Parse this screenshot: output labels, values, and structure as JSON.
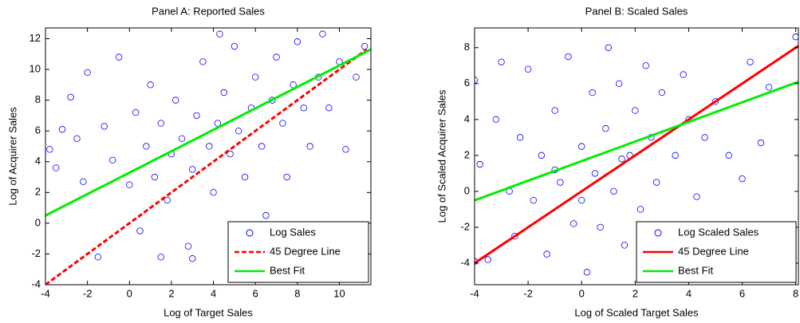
{
  "chart_data": [
    {
      "type": "scatter",
      "title": "Panel A: Reported Sales",
      "x_label": "Log of Target Sales",
      "y_label": "Log of Acquirer Sales",
      "xlim": [
        -4,
        11.5
      ],
      "ylim": [
        -4,
        12.7
      ],
      "xticks": [
        -4,
        -2,
        0,
        2,
        4,
        6,
        8,
        10
      ],
      "yticks": [
        -4,
        -2,
        0,
        2,
        4,
        6,
        8,
        10,
        12
      ],
      "legend": "lower right",
      "series": [
        {
          "name": "Log Sales",
          "style": "marker",
          "color": "#0000ff",
          "x": [
            -3.8,
            -3.5,
            -3.2,
            -2.8,
            -2.5,
            -2.2,
            -2,
            -1.5,
            -1.2,
            -0.8,
            -0.5,
            0,
            0.3,
            0.5,
            0.8,
            1,
            1.2,
            1.5,
            1.8,
            2,
            2.2,
            2.5,
            2.8,
            3,
            3.2,
            3.5,
            3.8,
            4,
            4.2,
            4.5,
            4.8,
            5,
            5.2,
            5.5,
            5.8,
            6,
            6.3,
            6.5,
            6.8,
            7,
            7.3,
            7.5,
            7.8,
            8,
            8.3,
            8.6,
            9,
            9.2,
            9.5,
            10,
            10.3,
            10.8,
            11.2,
            4.3,
            3,
            1.5
          ],
          "values": [
            4.8,
            3.6,
            6.1,
            8.2,
            5.5,
            2.7,
            9.8,
            -2.2,
            6.3,
            4.1,
            10.8,
            2.5,
            7.2,
            -0.5,
            5,
            9,
            3,
            6.5,
            1.5,
            4.5,
            8,
            5.5,
            -1.5,
            3.5,
            7,
            10.5,
            5,
            2,
            6.5,
            8.5,
            4.5,
            11.5,
            6,
            3,
            7.5,
            9.5,
            5,
            0.5,
            8,
            10.8,
            6.5,
            3,
            9,
            11.8,
            7.5,
            5,
            9.5,
            12.3,
            7.5,
            10.5,
            4.8,
            9.5,
            11.5,
            12.3,
            -2.3,
            -2.2
          ]
        },
        {
          "name": "45 Degree Line",
          "style": "line",
          "dash": true,
          "color": "#ff0000",
          "x": [
            -4,
            11.3
          ],
          "values": [
            -4,
            11.3
          ]
        },
        {
          "name": "Best Fit",
          "style": "line",
          "dash": false,
          "color": "#00ee00",
          "x": [
            -4,
            11.5
          ],
          "values": [
            0.5,
            11.3
          ]
        }
      ]
    },
    {
      "type": "scatter",
      "title": "Panel B: Scaled Sales",
      "x_label": "Log of Scaled Target Sales",
      "y_label": "Log of Scaled Acquirer Sales",
      "xlim": [
        -4,
        8.1
      ],
      "ylim": [
        -5.2,
        9.1
      ],
      "xticks": [
        -4,
        -2,
        0,
        2,
        4,
        6,
        8
      ],
      "yticks": [
        -4,
        -2,
        0,
        2,
        4,
        6,
        8
      ],
      "legend": "lower right",
      "series": [
        {
          "name": "Log Scaled Sales",
          "style": "marker",
          "color": "#0000ff",
          "x": [
            -4,
            -3.8,
            -3.5,
            -3.2,
            -3,
            -2.7,
            -2.5,
            -2.3,
            -2,
            -1.8,
            -1.5,
            -1.3,
            -1,
            -0.8,
            -0.5,
            -0.3,
            0,
            0.2,
            0.4,
            0.5,
            0.7,
            0.9,
            1,
            1.2,
            1.4,
            1.6,
            1.8,
            2,
            2.2,
            2.4,
            2.6,
            2.8,
            3,
            3.2,
            3.5,
            3.8,
            4,
            4.3,
            4.6,
            5,
            5.5,
            6,
            6.3,
            6.7,
            7,
            8,
            -4,
            0,
            1.5,
            -1
          ],
          "values": [
            6.2,
            1.5,
            -3.8,
            4,
            7.2,
            0,
            -2.5,
            3,
            6.8,
            -0.5,
            2,
            -3.5,
            4.5,
            0.5,
            7.5,
            -1.8,
            2.5,
            -4.5,
            5.5,
            1,
            -2,
            3.5,
            8,
            0,
            6,
            -3,
            2,
            4.5,
            -1,
            7,
            3,
            0.5,
            5.5,
            -2.5,
            2,
            6.5,
            4,
            -0.3,
            3,
            5,
            2,
            0.7,
            7.2,
            2.7,
            5.8,
            8.6,
            -3.9,
            -0.5,
            1.8,
            1.2
          ]
        },
        {
          "name": "45 Degree Line",
          "style": "line",
          "dash": false,
          "color": "#ff0000",
          "x": [
            -4,
            8.1
          ],
          "values": [
            -4,
            8.1
          ]
        },
        {
          "name": "Best Fit",
          "style": "line",
          "dash": false,
          "color": "#00ee00",
          "x": [
            -4,
            8.1
          ],
          "values": [
            -0.5,
            6.1
          ]
        }
      ]
    }
  ]
}
